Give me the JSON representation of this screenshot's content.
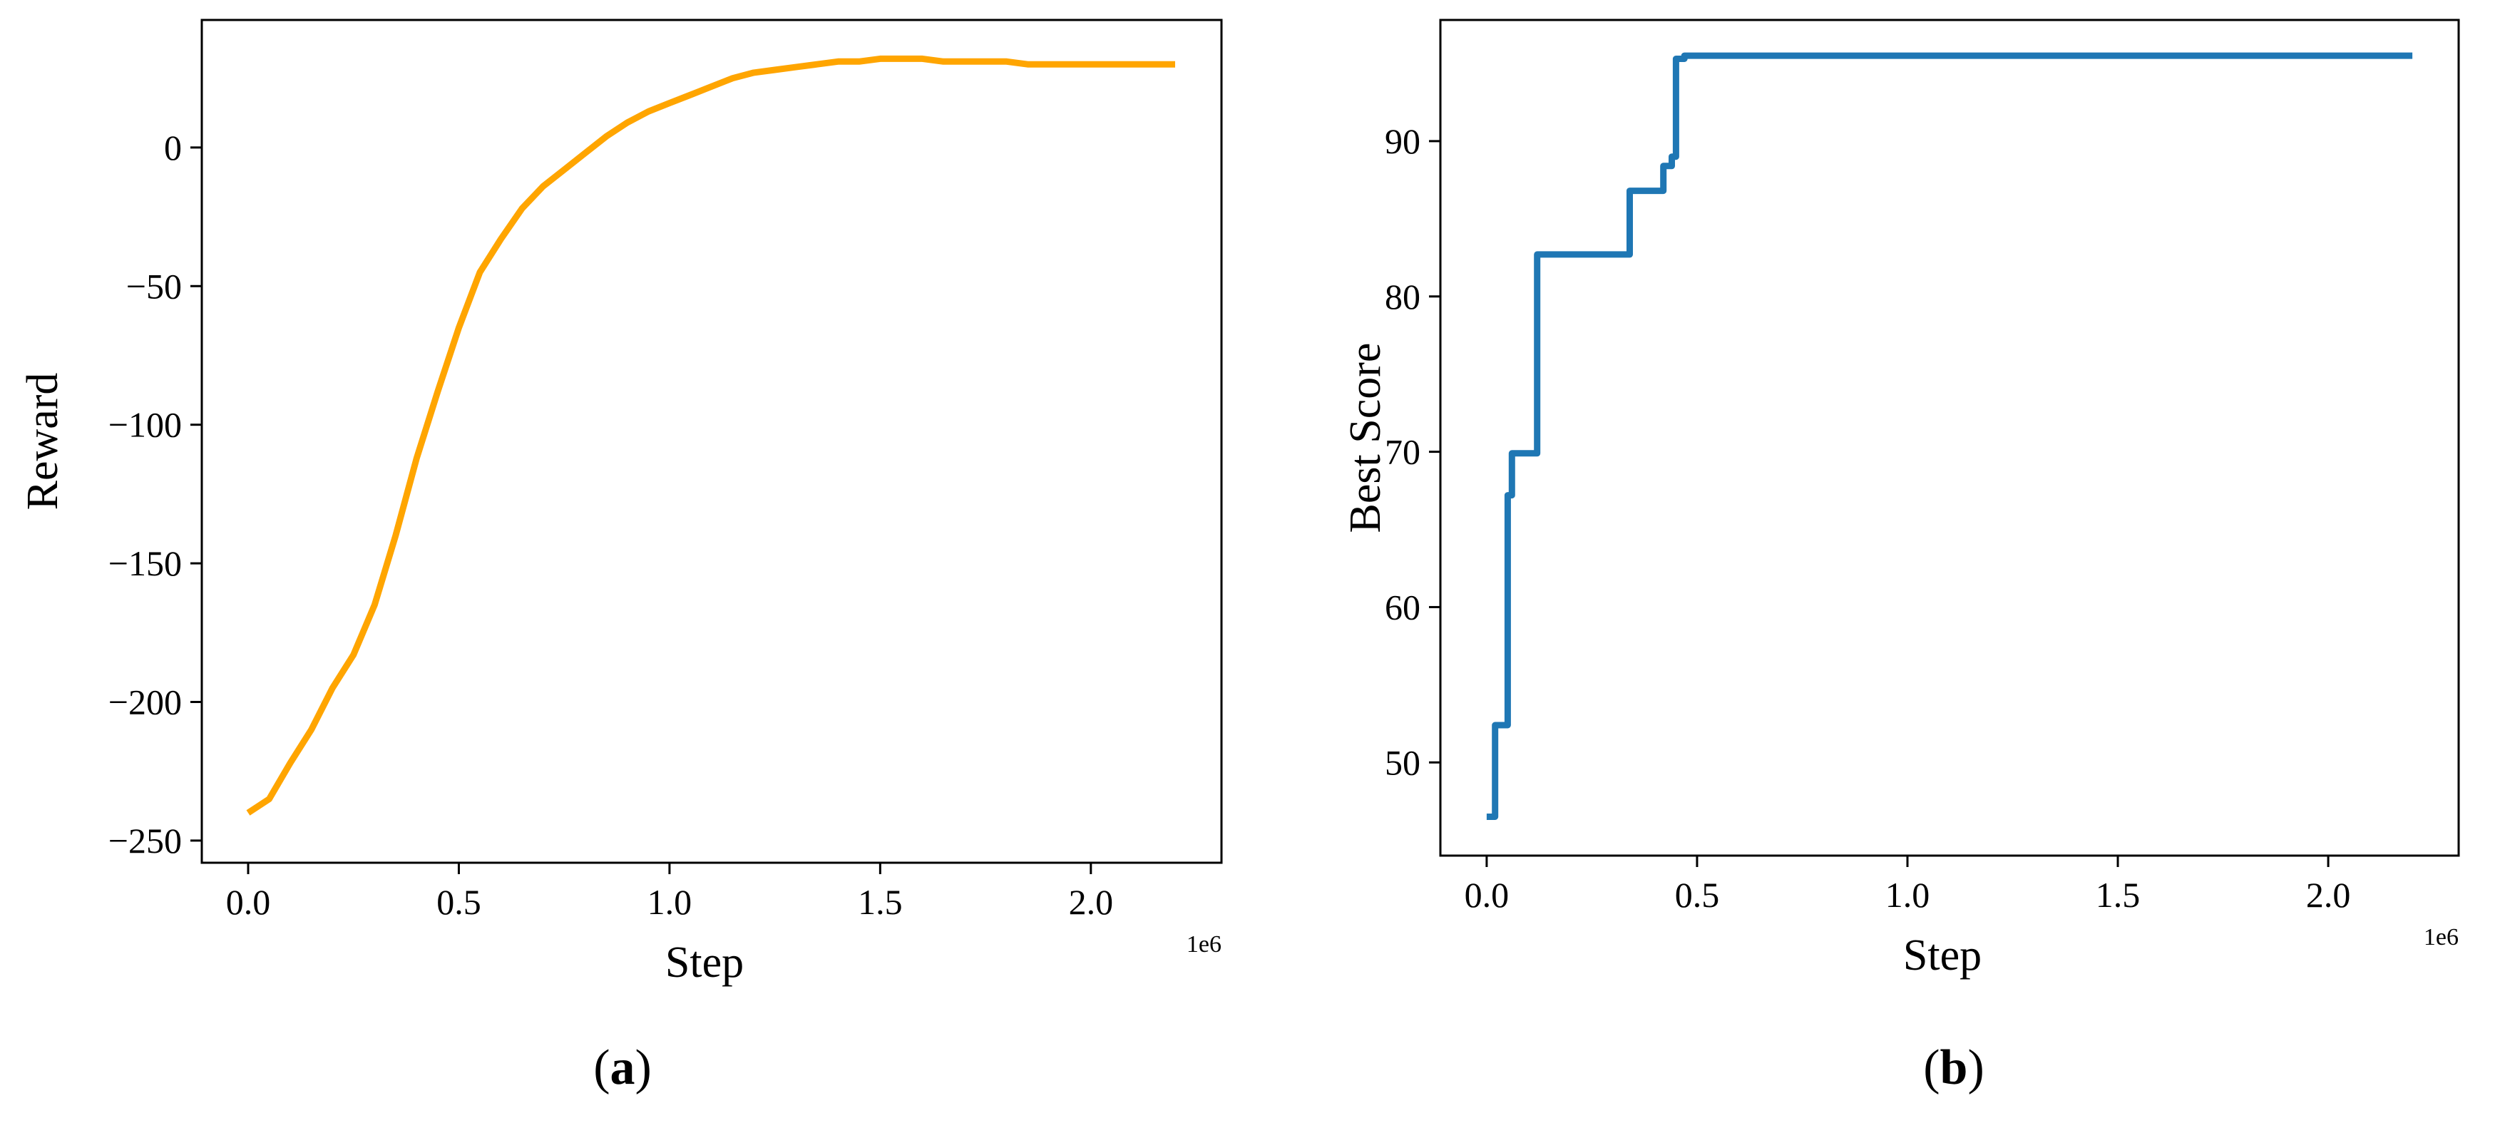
{
  "chart_data": [
    {
      "type": "line",
      "panel_label": "a",
      "xlabel": "Step",
      "ylabel": "Reward",
      "x_offset_label": "1e6",
      "xlim": [
        -0.11,
        2.31
      ],
      "ylim": [
        -258,
        46
      ],
      "xticks": [
        0.0,
        0.5,
        1.0,
        1.5,
        2.0
      ],
      "xtick_labels": [
        "0.0",
        "0.5",
        "1.0",
        "1.5",
        "2.0"
      ],
      "yticks": [
        -250,
        -200,
        -150,
        -100,
        -50,
        0
      ],
      "ytick_labels": [
        "−250",
        "−200",
        "−150",
        "−100",
        "−50",
        "0"
      ],
      "grid": false,
      "series": [
        {
          "color": "#FFA500",
          "x": [
            0.0,
            0.05,
            0.1,
            0.15,
            0.2,
            0.25,
            0.3,
            0.35,
            0.4,
            0.45,
            0.5,
            0.55,
            0.6,
            0.65,
            0.7,
            0.75,
            0.8,
            0.85,
            0.9,
            0.95,
            1.0,
            1.05,
            1.1,
            1.15,
            1.2,
            1.25,
            1.3,
            1.35,
            1.4,
            1.45,
            1.5,
            1.55,
            1.6,
            1.65,
            1.7,
            1.75,
            1.8,
            1.85,
            1.9,
            1.95,
            2.0,
            2.05,
            2.1,
            2.15,
            2.2
          ],
          "y": [
            -240,
            -235,
            -222,
            -210,
            -195,
            -183,
            -165,
            -140,
            -112,
            -88,
            -65,
            -45,
            -33,
            -22,
            -14,
            -8,
            -2,
            4,
            9,
            13,
            16,
            19,
            22,
            25,
            27,
            28,
            29,
            30,
            31,
            31,
            32,
            32,
            32,
            31,
            31,
            31,
            31,
            30,
            30,
            30,
            30,
            30,
            30,
            30,
            30
          ]
        }
      ]
    },
    {
      "type": "line",
      "panel_label": "b",
      "xlabel": "Step",
      "ylabel": "Best Score",
      "x_offset_label": "1e6",
      "xlim": [
        -0.11,
        2.31
      ],
      "ylim": [
        44,
        97.8
      ],
      "xticks": [
        0.0,
        0.5,
        1.0,
        1.5,
        2.0
      ],
      "xtick_labels": [
        "0.0",
        "0.5",
        "1.0",
        "1.5",
        "2.0"
      ],
      "yticks": [
        50,
        60,
        70,
        80,
        90
      ],
      "ytick_labels": [
        "50",
        "60",
        "70",
        "80",
        "90"
      ],
      "grid": false,
      "series": [
        {
          "color": "#1F77B4",
          "x": [
            0.0,
            0.02,
            0.02,
            0.05,
            0.05,
            0.06,
            0.06,
            0.08,
            0.08,
            0.12,
            0.12,
            0.34,
            0.34,
            0.42,
            0.42,
            0.44,
            0.44,
            0.45,
            0.45,
            0.47,
            0.47,
            2.2
          ],
          "y": [
            46.5,
            46.5,
            52.4,
            52.4,
            67.2,
            67.2,
            69.9,
            69.9,
            69.9,
            69.9,
            82.7,
            82.7,
            86.8,
            86.8,
            88.4,
            88.4,
            89.0,
            89.0,
            95.3,
            95.3,
            95.5,
            95.5
          ]
        }
      ]
    }
  ]
}
